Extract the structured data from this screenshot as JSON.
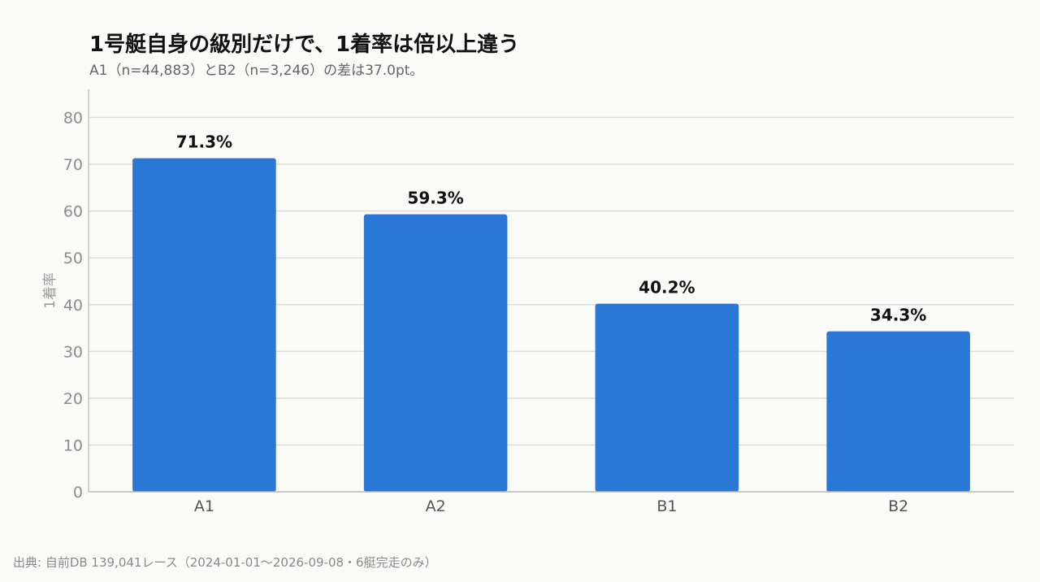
{
  "chart_data": {
    "type": "bar",
    "title": "1号艇自身の級別だけで、1着率は倍以上違う",
    "subtitle": "A1（n=44,883）とB2（n=3,246）の差は37.0pt。",
    "categories": [
      "A1",
      "A2",
      "B1",
      "B2"
    ],
    "values": [
      71.3,
      59.3,
      40.2,
      34.3
    ],
    "value_labels": [
      "71.3%",
      "59.3%",
      "40.2%",
      "34.3%"
    ],
    "xlabel": "",
    "ylabel": "1着率",
    "ylim": [
      0,
      86
    ],
    "yticks": [
      0,
      10,
      20,
      30,
      40,
      50,
      60,
      70,
      80
    ],
    "grid": true,
    "legend": "none",
    "bar_color": "#2a78d6",
    "source": "出典: 自前DB 139,041レース（2024-01-01〜2026-09-08・6艇完走のみ）"
  }
}
